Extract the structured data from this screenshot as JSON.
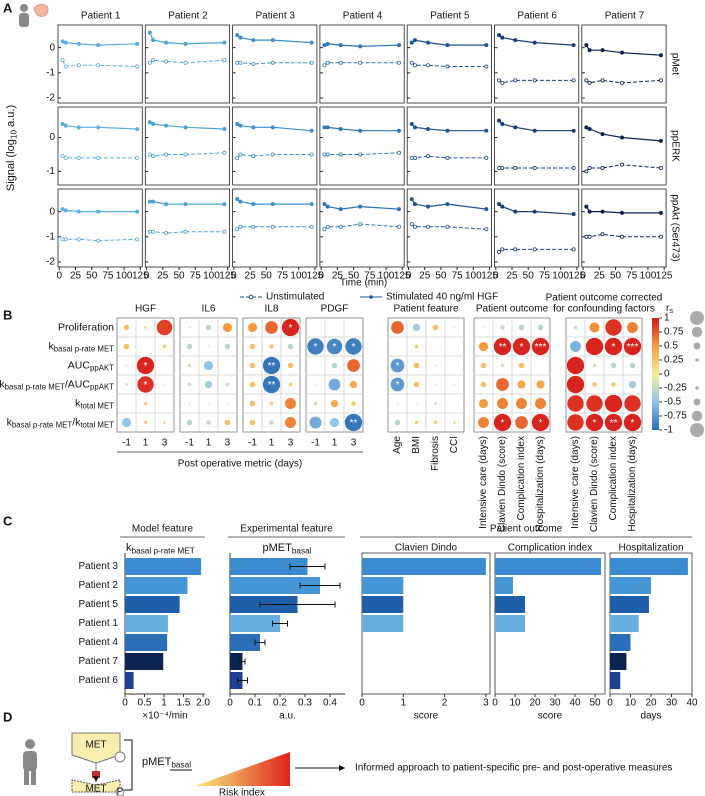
{
  "panel_a": {
    "label": "A",
    "patients": [
      "Patient 1",
      "Patient 2",
      "Patient 3",
      "Patient 4",
      "Patient 5",
      "Patient 6",
      "Patient 7"
    ],
    "colors": [
      "#5aaee0",
      "#4aa3d8",
      "#3a8fcc",
      "#2c74b8",
      "#1e5596",
      "#1a3d78",
      "#0d2350"
    ],
    "x": [
      5,
      10,
      30,
      60,
      120
    ],
    "xlim": [
      -2,
      128
    ],
    "xticks": [
      0,
      25,
      50,
      75,
      100,
      125
    ],
    "xlabel": "Time (min)",
    "ylabel": [
      {
        "t": "Signal (log"
      },
      {
        "s": "10"
      },
      {
        "t": " a.u.)"
      }
    ],
    "legend": [
      "Unstimulated",
      "Stimulated 40 ng/ml HGF"
    ],
    "rows": [
      {
        "name": "pMet",
        "ylim": [
          -2.2,
          0.9
        ],
        "yticks": [
          -2,
          -1,
          0
        ],
        "stim": [
          [
            0.25,
            0.2,
            0.15,
            0.1,
            0.15
          ],
          [
            0.6,
            0.3,
            0.2,
            0.15,
            0.2
          ],
          [
            0.5,
            0.4,
            0.3,
            0.3,
            0.2
          ],
          [
            0.1,
            0.15,
            0.1,
            0.05,
            0.1
          ],
          [
            0.2,
            0.3,
            0.2,
            0.1,
            0.1
          ],
          [
            0.5,
            0.4,
            0.3,
            0.2,
            0.1
          ],
          [
            0.1,
            -0.1,
            -0.1,
            -0.2,
            -0.3
          ]
        ],
        "unstim": [
          [
            -0.5,
            -0.75,
            -0.7,
            -0.7,
            -0.75
          ],
          [
            -0.6,
            -0.5,
            -0.55,
            -0.6,
            -0.5
          ],
          [
            -0.6,
            -0.6,
            -0.65,
            -0.6,
            -0.6
          ],
          [
            -0.7,
            -0.6,
            -0.6,
            -0.6,
            -0.6
          ],
          [
            -0.6,
            -0.7,
            -0.7,
            -0.75,
            -0.75
          ],
          [
            -1.3,
            -1.4,
            -1.3,
            -1.3,
            -1.3
          ],
          [
            -1.3,
            -1.4,
            -1.3,
            -1.4,
            -1.3
          ]
        ]
      },
      {
        "name": "ppERK",
        "ylim": [
          -1.4,
          0.9
        ],
        "yticks": [
          -1,
          0
        ],
        "stim": [
          [
            0.4,
            0.35,
            0.3,
            0.3,
            0.25
          ],
          [
            0.45,
            0.4,
            0.35,
            0.3,
            0.25
          ],
          [
            0.4,
            0.35,
            0.3,
            0.3,
            0.2
          ],
          [
            0.3,
            0.3,
            0.25,
            0.2,
            0.2
          ],
          [
            0.4,
            0.3,
            0.25,
            0.2,
            0.2
          ],
          [
            0.5,
            0.4,
            0.3,
            0.2,
            0.2
          ],
          [
            0.3,
            0.25,
            0.1,
            0.0,
            -0.1
          ]
        ],
        "unstim": [
          [
            -0.55,
            -0.6,
            -0.6,
            -0.6,
            -0.6
          ],
          [
            -0.5,
            -0.55,
            -0.5,
            -0.5,
            -0.45
          ],
          [
            -0.6,
            -0.5,
            -0.55,
            -0.5,
            -0.5
          ],
          [
            -0.5,
            -0.5,
            -0.5,
            -0.5,
            -0.45
          ],
          [
            -0.6,
            -0.6,
            -0.55,
            -0.6,
            -0.6
          ],
          [
            -0.9,
            -0.9,
            -0.9,
            -0.9,
            -0.9
          ],
          [
            -1.0,
            -0.9,
            -0.9,
            -0.8,
            -0.9
          ]
        ]
      },
      {
        "name": "ppAkt (Ser473)",
        "ylim": [
          -2.2,
          0.9
        ],
        "yticks": [
          -2,
          -1,
          0
        ],
        "stim": [
          [
            0.1,
            0.05,
            0.0,
            0.0,
            0.0
          ],
          [
            0.4,
            0.4,
            0.3,
            0.3,
            0.3
          ],
          [
            0.5,
            0.4,
            0.3,
            0.3,
            0.3
          ],
          [
            0.3,
            0.2,
            0.1,
            0.2,
            0.1
          ],
          [
            0.5,
            0.3,
            0.2,
            0.3,
            0.1
          ],
          [
            0.3,
            0.2,
            0.0,
            0.0,
            -0.1
          ],
          [
            0.2,
            0.0,
            0.0,
            -0.05,
            -0.05
          ]
        ],
        "unstim": [
          [
            -1.1,
            -1.1,
            -1.1,
            -1.15,
            -1.1
          ],
          [
            -0.8,
            -0.8,
            -0.85,
            -0.8,
            -0.8
          ],
          [
            -0.7,
            -0.6,
            -0.6,
            -0.6,
            -0.6
          ],
          [
            -0.7,
            -0.6,
            -0.6,
            -0.5,
            -0.6
          ],
          [
            -0.5,
            -0.6,
            -0.6,
            -0.6,
            -0.7
          ],
          [
            -1.6,
            -1.5,
            -1.5,
            -1.5,
            -1.5
          ],
          [
            -1.0,
            -1.0,
            -0.9,
            -1.0,
            -1.0
          ]
        ]
      }
    ]
  },
  "panel_b": {
    "label": "B",
    "rows": [
      [
        {
          "t": "Proliferation"
        }
      ],
      [
        {
          "t": "k"
        },
        {
          "s": "basal p-rate MET"
        }
      ],
      [
        {
          "t": "AUC"
        },
        {
          "s": "ppAKT"
        }
      ],
      [
        {
          "t": "k"
        },
        {
          "s": "basal p-rate MET"
        },
        {
          "t": "/AUC"
        },
        {
          "s": "ppAKT"
        }
      ],
      [
        {
          "t": "k"
        },
        {
          "s": "total MET"
        }
      ],
      [
        {
          "t": "k"
        },
        {
          "s": "basal p-rate MET"
        },
        {
          "t": "/k"
        },
        {
          "s": "total MET"
        }
      ]
    ],
    "cytokine_cols": [
      -1,
      1,
      3
    ],
    "xlabel": "Post operative metric (days)",
    "cytokines": [
      {
        "name": "HGF",
        "values": [
          [
            0.3,
            -0.15,
            0.85
          ],
          [
            0.3,
            0.05,
            0.2
          ],
          [
            0.1,
            0.95,
            0.05
          ],
          [
            -0.15,
            0.9,
            0.1
          ],
          [
            0.05,
            0.2,
            0.05
          ],
          [
            -0.5,
            0.2,
            0.15
          ]
        ],
        "stars": [
          [
            null,
            null,
            null
          ],
          [
            null,
            null,
            null
          ],
          [
            null,
            "*",
            null
          ],
          [
            null,
            "*",
            null
          ],
          [
            null,
            null,
            null
          ],
          [
            null,
            null,
            null
          ]
        ]
      },
      {
        "name": "IL6",
        "values": [
          [
            0.1,
            -0.3,
            0.5
          ],
          [
            -0.3,
            0.1,
            -0.3
          ],
          [
            -0.2,
            -0.5,
            0.05
          ],
          [
            -0.2,
            -0.4,
            -0.2
          ],
          [
            0.1,
            -0.1,
            0.1
          ],
          [
            -0.3,
            -0.25,
            0.3
          ]
        ],
        "stars": [
          [
            null,
            null,
            null
          ],
          [
            null,
            null,
            null
          ],
          [
            null,
            null,
            null
          ],
          [
            null,
            null,
            null
          ],
          [
            null,
            null,
            null
          ],
          [
            null,
            null,
            null
          ]
        ]
      },
      {
        "name": "IL8",
        "values": [
          [
            0.5,
            0.7,
            0.95
          ],
          [
            0.3,
            0.25,
            -0.3
          ],
          [
            0.3,
            -0.95,
            0.3
          ],
          [
            0.3,
            -0.95,
            0.2
          ],
          [
            0.3,
            0.2,
            0.6
          ],
          [
            0.3,
            -0.25,
            0.6
          ]
        ],
        "stars": [
          [
            null,
            null,
            "*"
          ],
          [
            null,
            null,
            null
          ],
          [
            null,
            "**",
            null
          ],
          [
            null,
            "**",
            null
          ],
          [
            null,
            null,
            null
          ],
          [
            null,
            null,
            null
          ]
        ]
      },
      {
        "name": "PDGF",
        "values": [
          [
            0.05,
            0.05,
            0.05
          ],
          [
            -0.9,
            -0.85,
            -0.9
          ],
          [
            0.05,
            -0.3,
            0.7
          ],
          [
            -0.1,
            -0.65,
            0.4
          ],
          [
            -0.2,
            0.4,
            0.25
          ],
          [
            -0.65,
            -0.5,
            -0.95
          ]
        ],
        "stars": [
          [
            null,
            null,
            null
          ],
          [
            "*",
            "*",
            "*"
          ],
          [
            null,
            null,
            null
          ],
          [
            null,
            null,
            null
          ],
          [
            null,
            null,
            null
          ],
          [
            null,
            null,
            "**"
          ]
        ]
      }
    ],
    "others": [
      {
        "title": [
          "Patient feature"
        ],
        "cols": [
          "Age",
          "BMI",
          "Fibrosis",
          "CCI"
        ],
        "values": [
          [
            0.7,
            -0.4,
            0.3,
            -0.1
          ],
          [
            0.05,
            0.2,
            0.05,
            0.05
          ],
          [
            -0.75,
            0.3,
            0.1,
            -0.05
          ],
          [
            -0.75,
            0.3,
            0.1,
            -0.1
          ],
          [
            -0.1,
            0.1,
            -0.15,
            0.05
          ],
          [
            -0.3,
            0.2,
            0.2,
            0.15
          ]
        ],
        "stars": [
          [
            null,
            null,
            null,
            null
          ],
          [
            null,
            null,
            null,
            null
          ],
          [
            "*",
            null,
            null,
            null
          ],
          [
            "*",
            null,
            null,
            null
          ],
          [
            null,
            null,
            null,
            null
          ],
          [
            null,
            null,
            null,
            null
          ]
        ]
      },
      {
        "title": [
          "Patient outcome"
        ],
        "cols": [
          "Intensive care (days)",
          "Clavien Dindo (score)",
          "Complication index",
          "Hospitalization (days)"
        ],
        "values": [
          [
            -0.1,
            -0.25,
            -0.3,
            -0.3
          ],
          [
            0.5,
            0.95,
            0.95,
            0.95
          ],
          [
            0.3,
            -0.2,
            0.3,
            0.05
          ],
          [
            0.3,
            0.7,
            0.45,
            0.45
          ],
          [
            0.5,
            0.6,
            0.6,
            0.6
          ],
          [
            0.6,
            0.95,
            0.7,
            0.95
          ]
        ],
        "stars": [
          [
            null,
            null,
            null,
            null
          ],
          [
            null,
            "**",
            "*",
            "***"
          ],
          [
            null,
            null,
            null,
            null
          ],
          [
            null,
            null,
            null,
            null
          ],
          [
            null,
            null,
            null,
            null
          ],
          [
            null,
            "*",
            null,
            "*"
          ]
        ]
      },
      {
        "title": [
          "Patient outcome corrected",
          "for confounding factors"
        ],
        "cols": [
          "Intensive care (days)",
          "Clavien Dindo (score)",
          "Complication index",
          "Hospitalization (days)"
        ],
        "values": [
          [
            -0.2,
            0.55,
            0.9,
            0.6
          ],
          [
            -0.6,
            0.95,
            0.95,
            0.95
          ],
          [
            0.95,
            -0.2,
            -0.3,
            -0.3
          ],
          [
            0.95,
            0.25,
            0.25,
            -0.4
          ],
          [
            0.9,
            0.9,
            0.95,
            0.9
          ],
          [
            0.9,
            0.95,
            0.95,
            0.95
          ]
        ],
        "stars": [
          [
            null,
            null,
            null,
            null
          ],
          [
            null,
            null,
            "*",
            "***"
          ],
          [
            null,
            null,
            null,
            null
          ],
          [
            null,
            null,
            null,
            null
          ],
          [
            null,
            null,
            null,
            null
          ],
          [
            null,
            "*",
            "**",
            "*"
          ]
        ]
      }
    ],
    "legend": {
      "title": [
        {
          "t": "r"
        },
        {
          "s": "s"
        }
      ],
      "clim": [
        -1,
        1
      ],
      "ticks": [
        1,
        0.75,
        0.5,
        0.25,
        0,
        -0.25,
        -0.5,
        -0.75,
        -1
      ],
      "colors": [
        "#2c6cb4",
        "#8ec5e8",
        "#f8ee9a",
        "#f59d3d",
        "#d4171c"
      ]
    }
  },
  "panel_c": {
    "label": "C",
    "patients": [
      "Patient 3",
      "Patient 2",
      "Patient 5",
      "Patient 1",
      "Patient 4",
      "Patient 7",
      "Patient 6"
    ],
    "colors": [
      "#3b8bd0",
      "#4596d6",
      "#1f5ea9",
      "#66aee0",
      "#2a6fb8",
      "#0b2450",
      "#1f3f92"
    ],
    "model": {
      "title": "Model feature",
      "header": [
        {
          "t": "k"
        },
        {
          "s": "basal p-rate MET"
        }
      ],
      "values": [
        1.95,
        1.6,
        1.4,
        1.1,
        1.08,
        0.98,
        0.22
      ],
      "xlim": [
        0,
        2.05
      ],
      "xticks": [
        0,
        0.5,
        1,
        1.5,
        {
          "value": 2,
          "label": "2.0"
        }
      ],
      "xlabel": "×10⁻⁴/min"
    },
    "experimental": {
      "title": "Experimental feature",
      "header": [
        {
          "t": "pMET"
        },
        {
          "s": "basal"
        }
      ],
      "values": [
        0.31,
        0.36,
        0.27,
        0.2,
        0.12,
        0.05,
        0.05
      ],
      "errors": [
        0.07,
        0.08,
        0.15,
        0.03,
        0.02,
        0.01,
        0.02
      ],
      "xlim": [
        0,
        0.46
      ],
      "xticks": [
        0,
        0.1,
        0.2,
        0.3,
        0.4
      ],
      "xlabel": "a.u."
    },
    "outcome": {
      "title": "Patient outcome",
      "plots": [
        {
          "name": "Clavien Dindo",
          "values": [
            3,
            1,
            1,
            1,
            0,
            0,
            0
          ],
          "xlim": [
            0,
            3.1
          ],
          "xticks": [
            0,
            1,
            2,
            3
          ],
          "xlabel": "score"
        },
        {
          "name": "Complication index",
          "values": [
            53,
            9,
            15,
            15,
            0,
            0,
            0
          ],
          "xlim": [
            0,
            55
          ],
          "xticks": [
            0,
            10,
            20,
            30,
            40,
            50
          ],
          "xlabel": "score"
        },
        {
          "name": "Hospitalization",
          "values": [
            38,
            20,
            19,
            14,
            10,
            8,
            5
          ],
          "xlim": [
            0,
            40
          ],
          "xticks": [
            0,
            10,
            20,
            30,
            40
          ],
          "xlabel": "days"
        }
      ]
    }
  },
  "panel_d": {
    "label": "D",
    "receptor": "MET",
    "receptor_bottom": "MET",
    "phospho": "P",
    "feature": [
      {
        "t": "pMET"
      },
      {
        "s": "basal"
      }
    ],
    "risk": "Risk index",
    "outcome": "Informed approach to patient-specific pre- and post-operative measures"
  }
}
